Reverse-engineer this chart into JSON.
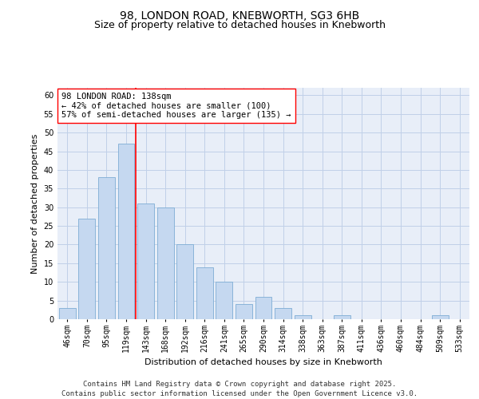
{
  "title1": "98, LONDON ROAD, KNEBWORTH, SG3 6HB",
  "title2": "Size of property relative to detached houses in Knebworth",
  "xlabel": "Distribution of detached houses by size in Knebworth",
  "ylabel": "Number of detached properties",
  "categories": [
    "46sqm",
    "70sqm",
    "95sqm",
    "119sqm",
    "143sqm",
    "168sqm",
    "192sqm",
    "216sqm",
    "241sqm",
    "265sqm",
    "290sqm",
    "314sqm",
    "338sqm",
    "363sqm",
    "387sqm",
    "411sqm",
    "436sqm",
    "460sqm",
    "484sqm",
    "509sqm",
    "533sqm"
  ],
  "values": [
    3,
    27,
    38,
    47,
    31,
    30,
    20,
    14,
    10,
    4,
    6,
    3,
    1,
    0,
    1,
    0,
    0,
    0,
    0,
    1,
    0
  ],
  "bar_color": "#c5d8f0",
  "bar_edge_color": "#7eadd4",
  "vline_color": "red",
  "annotation_text": "98 LONDON ROAD: 138sqm\n← 42% of detached houses are smaller (100)\n57% of semi-detached houses are larger (135) →",
  "annotation_box_color": "white",
  "annotation_box_edge_color": "red",
  "ylim": [
    0,
    62
  ],
  "yticks": [
    0,
    5,
    10,
    15,
    20,
    25,
    30,
    35,
    40,
    45,
    50,
    55,
    60
  ],
  "grid_color": "#c0d0e8",
  "bg_color": "#e8eef8",
  "footer": "Contains HM Land Registry data © Crown copyright and database right 2025.\nContains public sector information licensed under the Open Government Licence v3.0.",
  "title_fontsize": 10,
  "subtitle_fontsize": 9,
  "axis_label_fontsize": 8,
  "tick_fontsize": 7,
  "annotation_fontsize": 7.5,
  "footer_fontsize": 6.5
}
